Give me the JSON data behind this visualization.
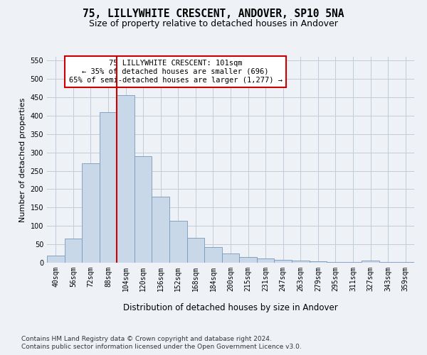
{
  "title1": "75, LILLYWHITE CRESCENT, ANDOVER, SP10 5NA",
  "title2": "Size of property relative to detached houses in Andover",
  "xlabel": "Distribution of detached houses by size in Andover",
  "ylabel": "Number of detached properties",
  "categories": [
    "40sqm",
    "56sqm",
    "72sqm",
    "88sqm",
    "104sqm",
    "120sqm",
    "136sqm",
    "152sqm",
    "168sqm",
    "184sqm",
    "200sqm",
    "215sqm",
    "231sqm",
    "247sqm",
    "263sqm",
    "279sqm",
    "295sqm",
    "311sqm",
    "327sqm",
    "343sqm",
    "359sqm"
  ],
  "values": [
    20,
    65,
    270,
    410,
    455,
    290,
    180,
    113,
    68,
    42,
    25,
    15,
    12,
    8,
    5,
    3,
    2,
    1,
    5,
    1,
    1
  ],
  "bar_color": "#c8d8e8",
  "bar_edge_color": "#7799bb",
  "vline_color": "#cc0000",
  "annotation_text": "75 LILLYWHITE CRESCENT: 101sqm\n← 35% of detached houses are smaller (696)\n65% of semi-detached houses are larger (1,277) →",
  "annotation_box_color": "#ffffff",
  "annotation_box_edge": "#cc0000",
  "ylim": [
    0,
    560
  ],
  "yticks": [
    0,
    50,
    100,
    150,
    200,
    250,
    300,
    350,
    400,
    450,
    500,
    550
  ],
  "footer1": "Contains HM Land Registry data © Crown copyright and database right 2024.",
  "footer2": "Contains public sector information licensed under the Open Government Licence v3.0.",
  "bg_color": "#eef2f7",
  "plot_bg_color": "#eef2f7",
  "grid_color": "#c0ccd8",
  "title1_fontsize": 10.5,
  "title2_fontsize": 9,
  "xlabel_fontsize": 8.5,
  "ylabel_fontsize": 8,
  "tick_fontsize": 7,
  "footer_fontsize": 6.5,
  "annotation_fontsize": 7.5
}
